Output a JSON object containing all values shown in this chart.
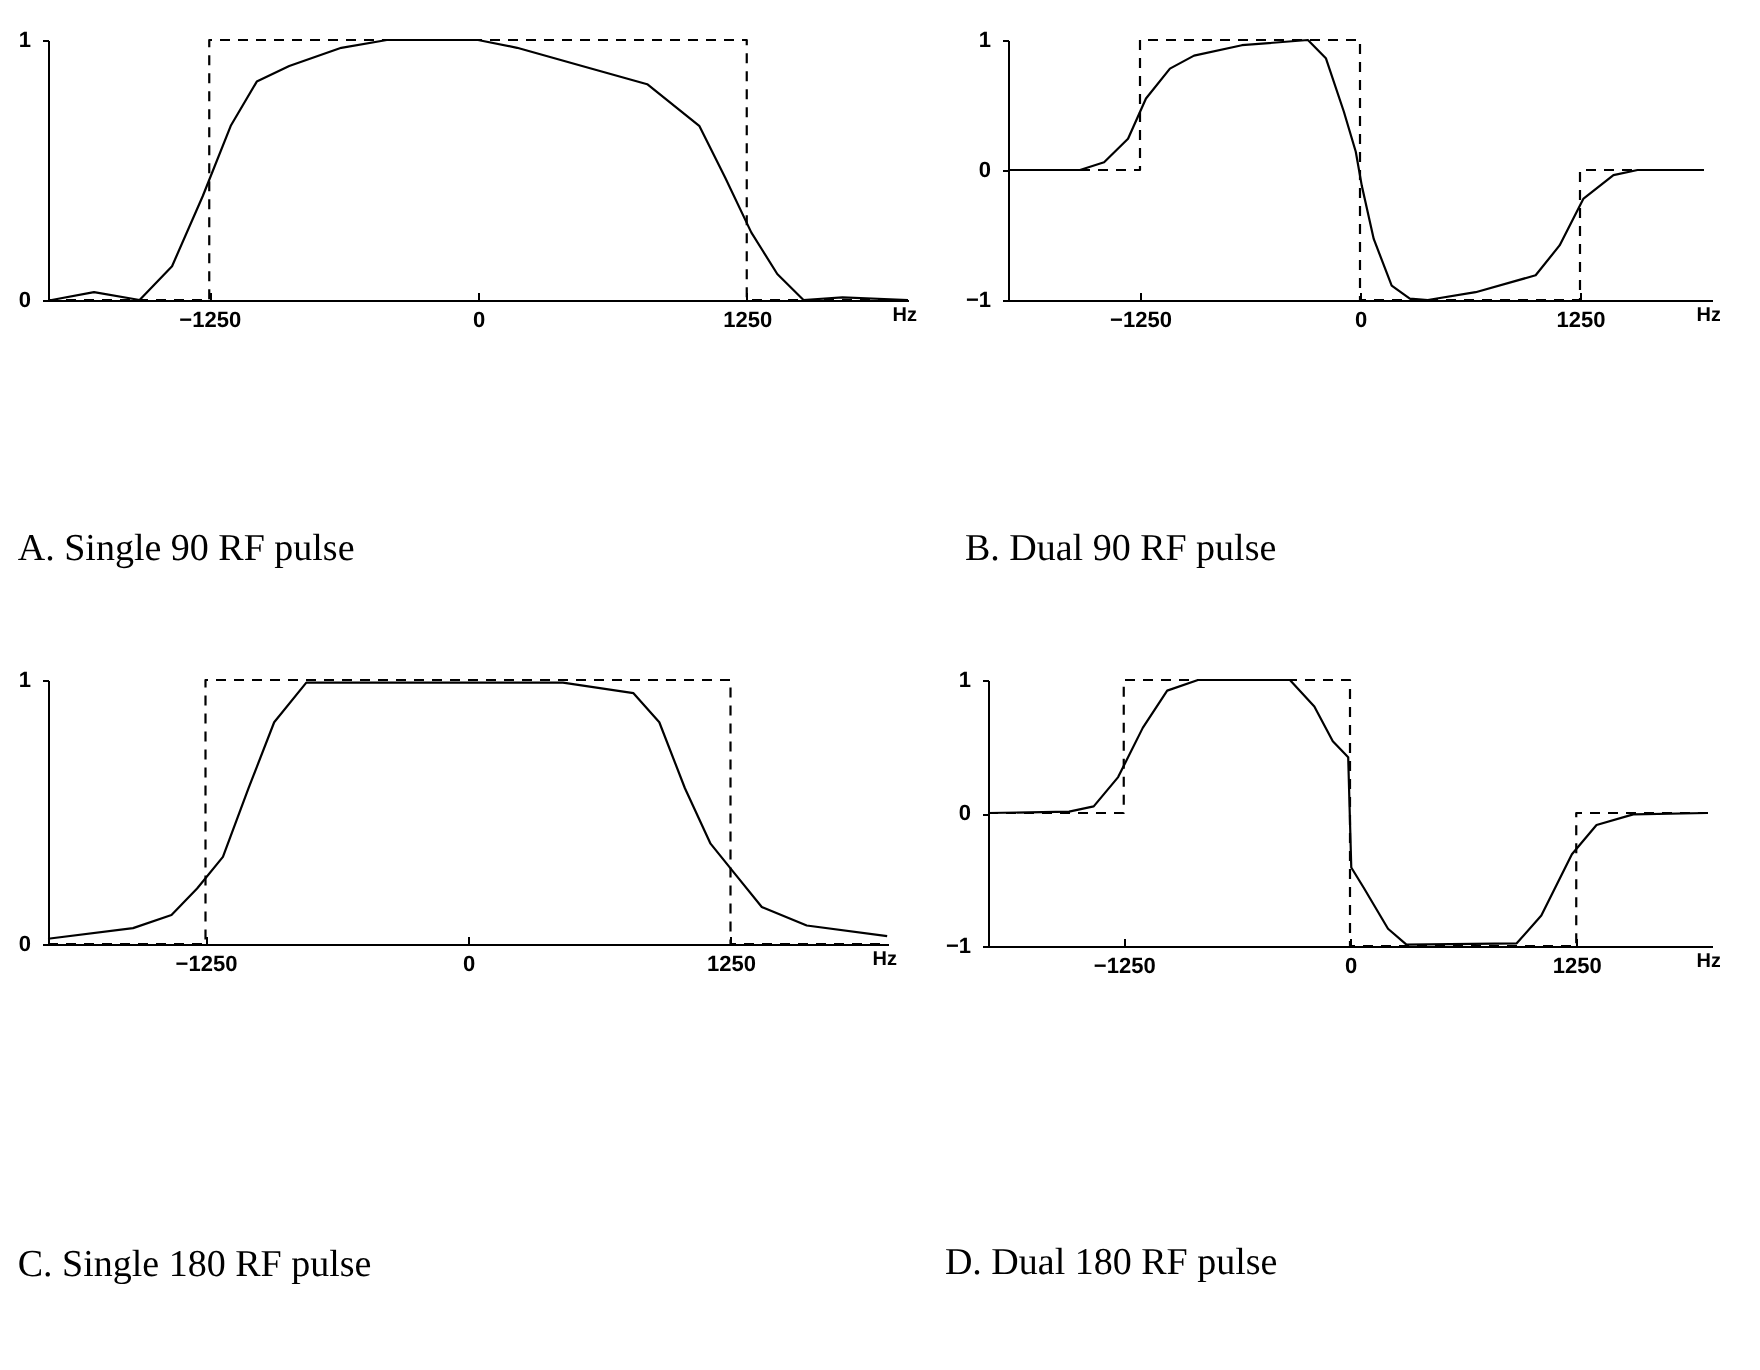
{
  "chart_data": [
    {
      "type": "line",
      "title": "A.  Single 90 RF pulse",
      "xlabel": "Hz",
      "xlim": [
        -2000,
        2000
      ],
      "xticks": [
        -1250,
        0,
        1250
      ],
      "ylim": [
        0,
        1
      ],
      "yticks": [
        0,
        1
      ],
      "series": [
        {
          "color": "#000000",
          "line_style": "dashed",
          "x": [
            -2000,
            -1250,
            -1250,
            1250,
            1250,
            2000
          ],
          "values": [
            0,
            0,
            1,
            1,
            0,
            0
          ]
        },
        {
          "color": "#000000",
          "line_style": "solid",
          "x": [
            -1983,
            -1786,
            -1574,
            -1423,
            -1280,
            -1150,
            -1029,
            -878,
            -636,
            -424,
            0,
            182,
            484,
            787,
            1029,
            1150,
            1271,
            1392,
            1514,
            1695,
            2000
          ],
          "values": [
            0,
            0.03,
            0,
            0.13,
            0.4,
            0.67,
            0.84,
            0.9,
            0.97,
            1,
            1,
            0.97,
            0.9,
            0.83,
            0.67,
            0.47,
            0.26,
            0.1,
            0,
            0.01,
            0
          ]
        }
      ]
    },
    {
      "type": "line",
      "title": "B. Dual 90 RF pulse",
      "xlabel": "Hz",
      "xlim": [
        -2000,
        2000
      ],
      "xticks": [
        -1250,
        0,
        1250
      ],
      "ylim": [
        -1,
        1
      ],
      "yticks": [
        -1,
        0,
        1
      ],
      "series": [
        {
          "color": "#000000",
          "line_style": "dashed",
          "x": [
            -2000,
            -1250,
            -1250,
            0,
            0,
            1250,
            1250,
            2000
          ],
          "values": [
            0,
            0,
            1,
            1,
            -1,
            -1,
            0,
            0
          ]
        },
        {
          "color": "#000000",
          "line_style": "solid",
          "x": [
            -2000,
            -1591,
            -1454,
            -1318,
            -1216,
            -1080,
            -943,
            -671,
            -296,
            -194,
            -92,
            -24,
            10,
            78,
            180,
            283,
            385,
            657,
            998,
            1134,
            1270,
            1440,
            1577,
            1917
          ],
          "values": [
            0,
            0,
            0.06,
            0.24,
            0.55,
            0.78,
            0.88,
            0.96,
            1,
            0.86,
            0.45,
            0.14,
            -0.12,
            -0.53,
            -0.89,
            -0.99,
            -1,
            -0.94,
            -0.81,
            -0.58,
            -0.22,
            -0.04,
            0,
            0
          ]
        }
      ]
    },
    {
      "type": "line",
      "title": "C. Single 180 RF pulse",
      "xlabel": "Hz",
      "xlim": [
        -2000,
        2000
      ],
      "xticks": [
        -1250,
        0,
        1250
      ],
      "ylim": [
        0,
        1
      ],
      "yticks": [
        0,
        1
      ],
      "series": [
        {
          "color": "#000000",
          "line_style": "dashed",
          "x": [
            -2000,
            -1250,
            -1250,
            1250,
            1250,
            2000
          ],
          "values": [
            0,
            0,
            1,
            1,
            0,
            0
          ]
        },
        {
          "color": "#000000",
          "line_style": "solid",
          "x": [
            -2000,
            -1595,
            -1412,
            -1290,
            -1167,
            -1045,
            -923,
            -770,
            452,
            788,
            911,
            1033,
            1155,
            1277,
            1399,
            1613,
            1996
          ],
          "values": [
            0.02,
            0.06,
            0.11,
            0.21,
            0.33,
            0.59,
            0.84,
            0.99,
            0.99,
            0.95,
            0.84,
            0.59,
            0.38,
            0.26,
            0.14,
            0.07,
            0.03
          ]
        }
      ]
    },
    {
      "type": "line",
      "title": "D. Dual 180 RF pulse",
      "xlabel": "Hz",
      "xlim": [
        -2000,
        2000
      ],
      "xticks": [
        -1250,
        0,
        1250
      ],
      "ylim": [
        -1,
        1
      ],
      "yticks": [
        -1,
        0,
        1
      ],
      "series": [
        {
          "color": "#000000",
          "line_style": "dashed",
          "x": [
            -2000,
            -1250,
            -1250,
            0,
            0,
            1250,
            1250,
            2000
          ],
          "values": [
            0,
            0,
            1,
            1,
            -1,
            -1,
            0,
            0
          ]
        },
        {
          "color": "#000000",
          "line_style": "solid",
          "x": [
            -2000,
            -1552,
            -1416,
            -1281,
            -1145,
            -1010,
            -840,
            -332,
            -197,
            -95,
            -10,
            7,
            75,
            210,
            312,
            921,
            1057,
            1226,
            1362,
            1565,
            1972
          ],
          "values": [
            0,
            0.01,
            0.05,
            0.27,
            0.64,
            0.92,
            1,
            1,
            0.8,
            0.54,
            0.42,
            -0.41,
            -0.56,
            -0.87,
            -0.99,
            -0.98,
            -0.77,
            -0.31,
            -0.09,
            -0.01,
            0
          ]
        }
      ]
    }
  ]
}
